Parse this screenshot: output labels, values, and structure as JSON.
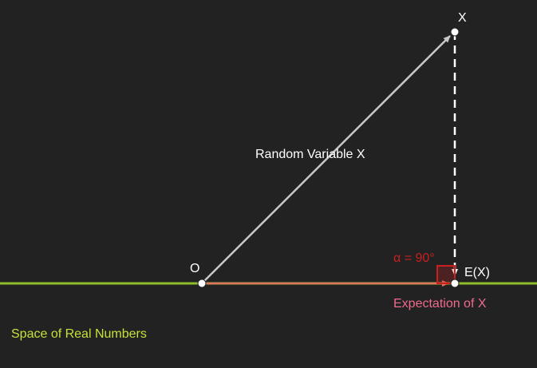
{
  "diagram": {
    "point_origin_label": "O",
    "point_x_label": "X",
    "point_ex_label": "E(X)",
    "vector_label": "Random Variable X",
    "projection_label": "Expectation of X",
    "angle_label": "α = 90°",
    "line_label": "Space of Real Numbers"
  },
  "colors": {
    "background": "#222222",
    "real_line": "#8dbf2b",
    "real_line_label": "#c4e23a",
    "vector": "#c8c8c8",
    "projection": "#e0755e",
    "expectation_label": "#f06a8c",
    "angle": "#cc1f1f",
    "dashed": "#ffffff",
    "text": "#ffffff",
    "point": "#ffffff"
  }
}
